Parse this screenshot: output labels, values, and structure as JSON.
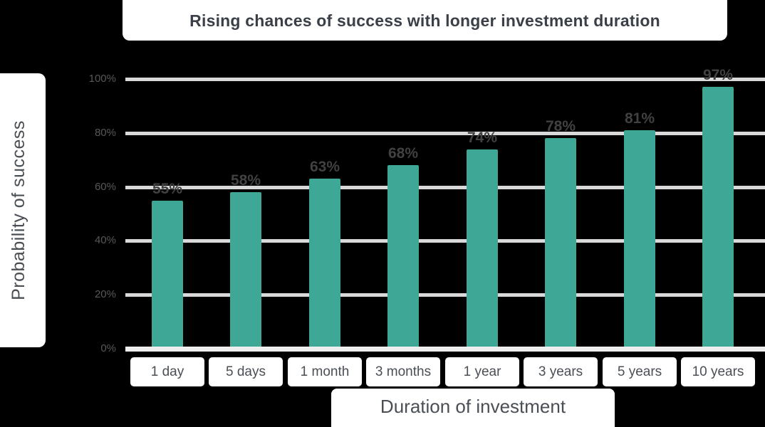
{
  "title": "Rising chances of success with longer investment duration",
  "y_axis": {
    "label": "Probability of success",
    "ticks": [
      "0%",
      "20%",
      "40%",
      "60%",
      "80%",
      "100%"
    ]
  },
  "x_axis": {
    "label": "Duration of investment"
  },
  "chart_data": {
    "type": "bar",
    "title": "Rising chances of success with longer investment duration",
    "xlabel": "Duration of investment",
    "ylabel": "Probability of success",
    "categories": [
      "1 day",
      "5 days",
      "1 month",
      "3 months",
      "1 year",
      "3 years",
      "5 years",
      "10 years"
    ],
    "values": [
      55,
      58,
      63,
      68,
      74,
      78,
      81,
      97
    ],
    "value_labels": [
      "55%",
      "58%",
      "63%",
      "68%",
      "74%",
      "78%",
      "81%",
      "97%"
    ],
    "ylim": [
      0,
      100
    ],
    "yticks": [
      0,
      20,
      40,
      60,
      80,
      100
    ],
    "grid": true,
    "legend": "none",
    "bar_color": "#3ea795",
    "gridline_color": "#d9d9d9",
    "baseline_color": "#efefef",
    "background_color": "#000000",
    "label_card_color": "#ffffff",
    "text_color": "#4a4f55"
  }
}
